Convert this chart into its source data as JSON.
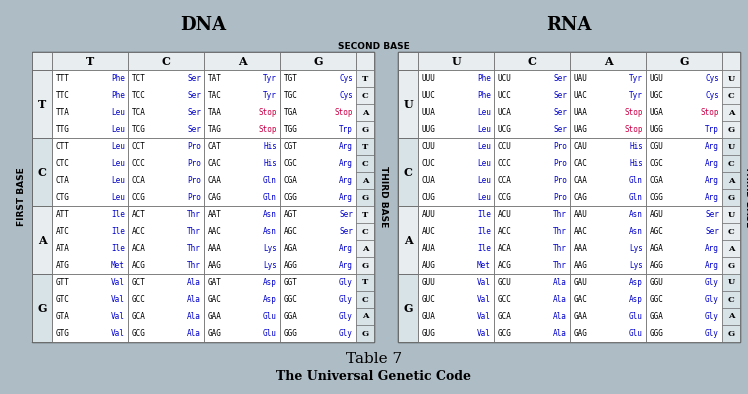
{
  "bg_color": "#adbcc5",
  "cell_bg": "#e8edf0",
  "title_dna": "DNA",
  "title_rna": "RNA",
  "second_base_label": "SECOND BASE",
  "first_base_label": "FIRST BASE",
  "third_base_label": "THIRD BASE",
  "table_title": "Table 7",
  "table_subtitle": "The Universal Genetic Code",
  "dna_col_headers": [
    "T",
    "C",
    "A",
    "G"
  ],
  "rna_col_headers": [
    "U",
    "C",
    "A",
    "G"
  ],
  "dna_row_headers": [
    "T",
    "C",
    "A",
    "G"
  ],
  "rna_row_headers": [
    "U",
    "C",
    "A",
    "G"
  ],
  "third_base_dna": [
    "T",
    "C",
    "A",
    "G"
  ],
  "third_base_rna": [
    "U",
    "C",
    "A",
    "G"
  ],
  "dna_data": [
    [
      [
        [
          "TTT",
          "Phe"
        ],
        [
          "TTC",
          "Phe"
        ],
        [
          "TTA",
          "Leu"
        ],
        [
          "TTG",
          "Leu"
        ]
      ],
      [
        [
          "TCT",
          "Ser"
        ],
        [
          "TCC",
          "Ser"
        ],
        [
          "TCA",
          "Ser"
        ],
        [
          "TCG",
          "Ser"
        ]
      ],
      [
        [
          "TAT",
          "Tyr"
        ],
        [
          "TAC",
          "Tyr"
        ],
        [
          "TAA",
          "Stop"
        ],
        [
          "TAG",
          "Stop"
        ]
      ],
      [
        [
          "TGT",
          "Cys"
        ],
        [
          "TGC",
          "Cys"
        ],
        [
          "TGA",
          "Stop"
        ],
        [
          "TGG",
          "Trp"
        ]
      ]
    ],
    [
      [
        [
          "CTT",
          "Leu"
        ],
        [
          "CTC",
          "Leu"
        ],
        [
          "CTA",
          "Leu"
        ],
        [
          "CTG",
          "Leu"
        ]
      ],
      [
        [
          "CCT",
          "Pro"
        ],
        [
          "CCC",
          "Pro"
        ],
        [
          "CCA",
          "Pro"
        ],
        [
          "CCG",
          "Pro"
        ]
      ],
      [
        [
          "CAT",
          "His"
        ],
        [
          "CAC",
          "His"
        ],
        [
          "CAA",
          "Gln"
        ],
        [
          "CAG",
          "Gln"
        ]
      ],
      [
        [
          "CGT",
          "Arg"
        ],
        [
          "CGC",
          "Arg"
        ],
        [
          "CGA",
          "Arg"
        ],
        [
          "CGG",
          "Arg"
        ]
      ]
    ],
    [
      [
        [
          "ATT",
          "Ile"
        ],
        [
          "ATC",
          "Ile"
        ],
        [
          "ATA",
          "Ile"
        ],
        [
          "ATG",
          "Met"
        ]
      ],
      [
        [
          "ACT",
          "Thr"
        ],
        [
          "ACC",
          "Thr"
        ],
        [
          "ACA",
          "Thr"
        ],
        [
          "ACG",
          "Thr"
        ]
      ],
      [
        [
          "AAT",
          "Asn"
        ],
        [
          "AAC",
          "Asn"
        ],
        [
          "AAA",
          "Lys"
        ],
        [
          "AAG",
          "Lys"
        ]
      ],
      [
        [
          "AGT",
          "Ser"
        ],
        [
          "AGC",
          "Ser"
        ],
        [
          "AGA",
          "Arg"
        ],
        [
          "AGG",
          "Arg"
        ]
      ]
    ],
    [
      [
        [
          "GTT",
          "Val"
        ],
        [
          "GTC",
          "Val"
        ],
        [
          "GTA",
          "Val"
        ],
        [
          "GTG",
          "Val"
        ]
      ],
      [
        [
          "GCT",
          "Ala"
        ],
        [
          "GCC",
          "Ala"
        ],
        [
          "GCA",
          "Ala"
        ],
        [
          "GCG",
          "Ala"
        ]
      ],
      [
        [
          "GAT",
          "Asp"
        ],
        [
          "GAC",
          "Asp"
        ],
        [
          "GAA",
          "Glu"
        ],
        [
          "GAG",
          "Glu"
        ]
      ],
      [
        [
          "GGT",
          "Gly"
        ],
        [
          "GGC",
          "Gly"
        ],
        [
          "GGA",
          "Gly"
        ],
        [
          "GGG",
          "Gly"
        ]
      ]
    ]
  ],
  "rna_data": [
    [
      [
        [
          "UUU",
          "Phe"
        ],
        [
          "UUC",
          "Phe"
        ],
        [
          "UUA",
          "Leu"
        ],
        [
          "UUG",
          "Leu"
        ]
      ],
      [
        [
          "UCU",
          "Ser"
        ],
        [
          "UCC",
          "Ser"
        ],
        [
          "UCA",
          "Ser"
        ],
        [
          "UCG",
          "Ser"
        ]
      ],
      [
        [
          "UAU",
          "Tyr"
        ],
        [
          "UAC",
          "Tyr"
        ],
        [
          "UAA",
          "Stop"
        ],
        [
          "UAG",
          "Stop"
        ]
      ],
      [
        [
          "UGU",
          "Cys"
        ],
        [
          "UGC",
          "Cys"
        ],
        [
          "UGA",
          "Stop"
        ],
        [
          "UGG",
          "Trp"
        ]
      ]
    ],
    [
      [
        [
          "CUU",
          "Leu"
        ],
        [
          "CUC",
          "Leu"
        ],
        [
          "CUA",
          "Leu"
        ],
        [
          "CUG",
          "Leu"
        ]
      ],
      [
        [
          "CCU",
          "Pro"
        ],
        [
          "CCC",
          "Pro"
        ],
        [
          "CCA",
          "Pro"
        ],
        [
          "CCG",
          "Pro"
        ]
      ],
      [
        [
          "CAU",
          "His"
        ],
        [
          "CAC",
          "His"
        ],
        [
          "CAA",
          "Gln"
        ],
        [
          "CAG",
          "Gln"
        ]
      ],
      [
        [
          "CGU",
          "Arg"
        ],
        [
          "CGC",
          "Arg"
        ],
        [
          "CGA",
          "Arg"
        ],
        [
          "CGG",
          "Arg"
        ]
      ]
    ],
    [
      [
        [
          "AUU",
          "Ile"
        ],
        [
          "AUC",
          "Ile"
        ],
        [
          "AUA",
          "Ile"
        ],
        [
          "AUG",
          "Met"
        ]
      ],
      [
        [
          "ACU",
          "Thr"
        ],
        [
          "ACC",
          "Thr"
        ],
        [
          "ACA",
          "Thr"
        ],
        [
          "ACG",
          "Thr"
        ]
      ],
      [
        [
          "AAU",
          "Asn"
        ],
        [
          "AAC",
          "Asn"
        ],
        [
          "AAA",
          "Lys"
        ],
        [
          "AAG",
          "Lys"
        ]
      ],
      [
        [
          "AGU",
          "Ser"
        ],
        [
          "AGC",
          "Ser"
        ],
        [
          "AGA",
          "Arg"
        ],
        [
          "AGG",
          "Arg"
        ]
      ]
    ],
    [
      [
        [
          "GUU",
          "Val"
        ],
        [
          "GUC",
          "Val"
        ],
        [
          "GUA",
          "Val"
        ],
        [
          "GUG",
          "Val"
        ]
      ],
      [
        [
          "GCU",
          "Ala"
        ],
        [
          "GCC",
          "Ala"
        ],
        [
          "GCA",
          "Ala"
        ],
        [
          "GCG",
          "Ala"
        ]
      ],
      [
        [
          "GAU",
          "Asp"
        ],
        [
          "GAC",
          "Asp"
        ],
        [
          "GAA",
          "Glu"
        ],
        [
          "GAG",
          "Glu"
        ]
      ],
      [
        [
          "GGU",
          "Gly"
        ],
        [
          "GGC",
          "Gly"
        ],
        [
          "GGA",
          "Gly"
        ],
        [
          "GGG",
          "Gly"
        ]
      ]
    ]
  ],
  "stop_color": "#cc0044",
  "codon_color": "#000000",
  "aa_color": "#0000cc",
  "line_color": "#666666"
}
